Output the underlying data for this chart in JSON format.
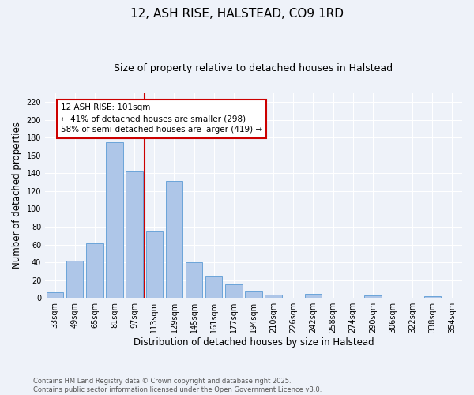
{
  "title": "12, ASH RISE, HALSTEAD, CO9 1RD",
  "subtitle": "Size of property relative to detached houses in Halstead",
  "xlabel": "Distribution of detached houses by size in Halstead",
  "ylabel": "Number of detached properties",
  "categories": [
    "33sqm",
    "49sqm",
    "65sqm",
    "81sqm",
    "97sqm",
    "113sqm",
    "129sqm",
    "145sqm",
    "161sqm",
    "177sqm",
    "194sqm",
    "210sqm",
    "226sqm",
    "242sqm",
    "258sqm",
    "274sqm",
    "290sqm",
    "306sqm",
    "322sqm",
    "338sqm",
    "354sqm"
  ],
  "values": [
    6,
    42,
    61,
    175,
    142,
    75,
    131,
    40,
    24,
    15,
    8,
    4,
    0,
    5,
    0,
    0,
    3,
    0,
    0,
    2,
    0
  ],
  "bar_color": "#aec6e8",
  "bar_edgecolor": "#5b9bd5",
  "vline_x_idx": 4,
  "vline_color": "#cc0000",
  "annotation_title": "12 ASH RISE: 101sqm",
  "annotation_line1": "← 41% of detached houses are smaller (298)",
  "annotation_line2": "58% of semi-detached houses are larger (419) →",
  "annotation_box_color": "#cc0000",
  "ylim": [
    0,
    230
  ],
  "yticks": [
    0,
    20,
    40,
    60,
    80,
    100,
    120,
    140,
    160,
    180,
    200,
    220
  ],
  "footer_line1": "Contains HM Land Registry data © Crown copyright and database right 2025.",
  "footer_line2": "Contains public sector information licensed under the Open Government Licence v3.0.",
  "background_color": "#eef2f9",
  "grid_color": "#ffffff",
  "title_fontsize": 11,
  "subtitle_fontsize": 9,
  "axis_label_fontsize": 8.5,
  "tick_fontsize": 7,
  "footer_fontsize": 6,
  "annot_fontsize": 7.5
}
